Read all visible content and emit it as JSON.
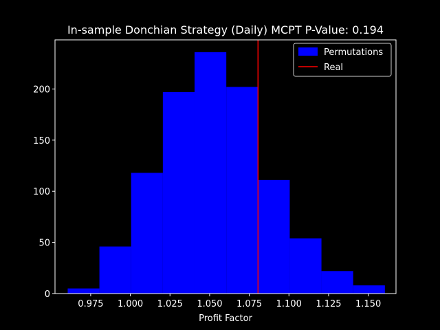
{
  "chart_data": {
    "type": "bar",
    "title": "In-sample Donchian Strategy (Daily) MCPT P-Value: 0.194",
    "xlabel": "Profit Factor",
    "ylabel": "",
    "xlim": [
      0.9525,
      1.1675
    ],
    "ylim": [
      0,
      248
    ],
    "xticks": [
      0.975,
      1.0,
      1.025,
      1.05,
      1.075,
      1.1,
      1.125,
      1.15
    ],
    "xtick_labels": [
      "0.975",
      "1.000",
      "1.025",
      "1.050",
      "1.075",
      "1.100",
      "1.125",
      "1.150"
    ],
    "yticks": [
      0,
      50,
      100,
      150,
      200
    ],
    "ytick_labels": [
      "0",
      "50",
      "100",
      "150",
      "200"
    ],
    "histogram": {
      "name": "Permutations",
      "color": "#0000ff",
      "bin_edges": [
        0.9605,
        0.9805,
        1.0005,
        1.0205,
        1.0405,
        1.0605,
        1.0805,
        1.1005,
        1.1205,
        1.1405,
        1.1605
      ],
      "counts": [
        5,
        46,
        118,
        197,
        236,
        202,
        111,
        54,
        22,
        8
      ]
    },
    "real_line": {
      "name": "Real",
      "x": 1.0805,
      "color": "#ff0000"
    },
    "legend": {
      "placement": "top-right",
      "entries": [
        "Permutations",
        "Real"
      ]
    },
    "grid": false
  }
}
